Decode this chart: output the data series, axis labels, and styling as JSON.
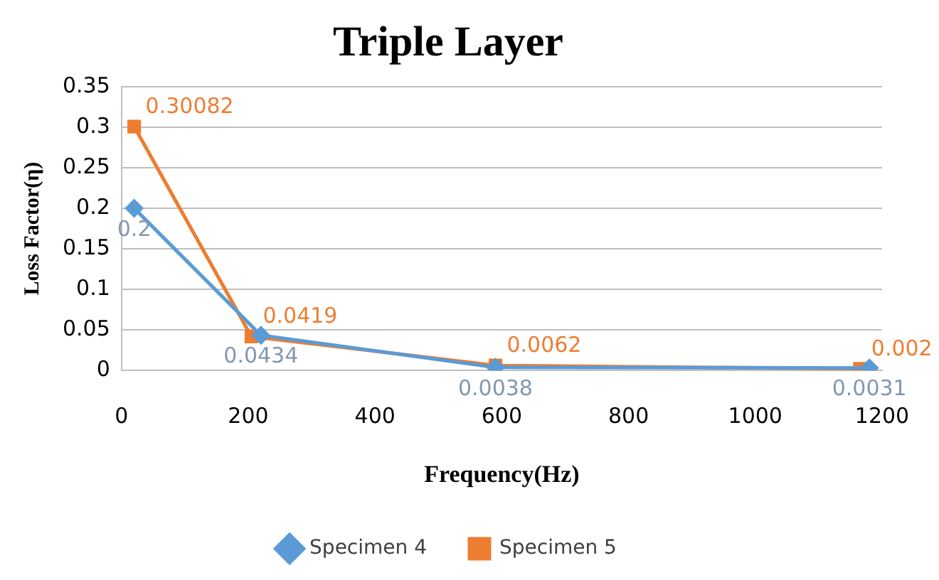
{
  "chart_data": {
    "type": "line",
    "title": "Triple Layer",
    "xlabel": "Frequency(Hz)",
    "ylabel": "Loss Factor(η)",
    "xlim": [
      0,
      1200
    ],
    "xticks": [
      0,
      200,
      400,
      600,
      800,
      1000,
      1200
    ],
    "ylim": [
      0,
      0.35
    ],
    "yticks": [
      0,
      0.05,
      0.1,
      0.15,
      0.2,
      0.25,
      0.3,
      0.35
    ],
    "grid": "y",
    "legend": "bottom",
    "data_labels": true,
    "series": [
      {
        "name": "Specimen 4",
        "color": "#5b9bd5",
        "marker": "diamond",
        "x": [
          20,
          220,
          590,
          1180
        ],
        "values": [
          0.2,
          0.0434,
          0.0038,
          0.0031
        ]
      },
      {
        "name": "Specimen 5",
        "color": "#ed7d31",
        "marker": "square",
        "x": [
          20,
          205,
          590,
          1165
        ],
        "values": [
          0.30082,
          0.0419,
          0.0062,
          0.002
        ]
      }
    ]
  }
}
